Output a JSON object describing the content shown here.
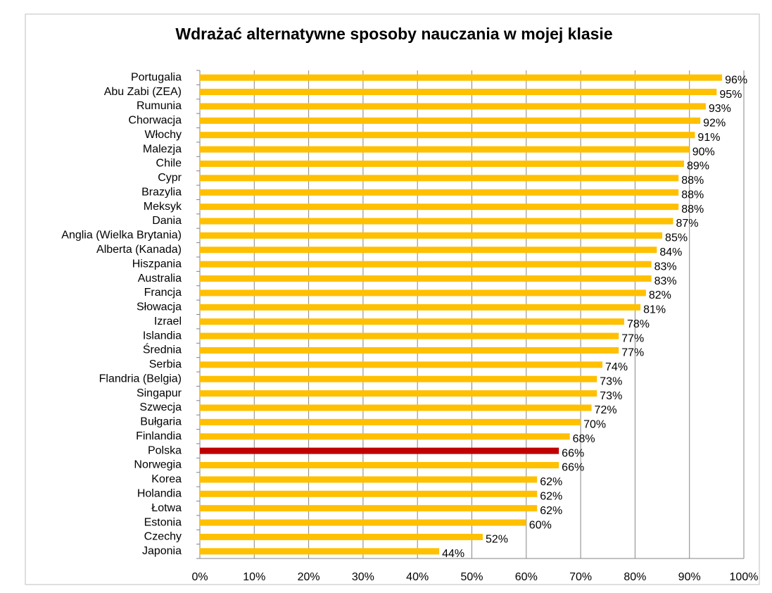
{
  "chart_data": {
    "type": "barh",
    "title": "Wdrażać alternatywne sposoby nauczania w mojej klasie",
    "categories": [
      "Portugalia",
      "Abu Zabi (ZEA)",
      "Rumunia",
      "Chorwacja",
      "Włochy",
      "Malezja",
      "Chile",
      "Cypr",
      "Brazylia",
      "Meksyk",
      "Dania",
      "Anglia (Wielka Brytania)",
      "Alberta (Kanada)",
      "Hiszpania",
      "Australia",
      "Francja",
      "Słowacja",
      "Izrael",
      "Islandia",
      "Średnia",
      "Serbia",
      "Flandria (Belgia)",
      "Singapur",
      "Szwecja",
      "Bułgaria",
      "Finlandia",
      "Polska",
      "Norwegia",
      "Korea",
      "Holandia",
      "Łotwa",
      "Estonia",
      "Czechy",
      "Japonia"
    ],
    "values": [
      96,
      95,
      93,
      92,
      91,
      90,
      89,
      88,
      88,
      88,
      87,
      85,
      84,
      83,
      83,
      82,
      81,
      78,
      77,
      77,
      74,
      73,
      73,
      72,
      70,
      68,
      66,
      66,
      62,
      62,
      62,
      60,
      52,
      44
    ],
    "value_labels": [
      "96%",
      "95%",
      "93%",
      "92%",
      "91%",
      "90%",
      "89%",
      "88%",
      "88%",
      "88%",
      "87%",
      "85%",
      "84%",
      "83%",
      "83%",
      "82%",
      "81%",
      "78%",
      "77%",
      "77%",
      "74%",
      "73%",
      "73%",
      "72%",
      "70%",
      "68%",
      "66%",
      "66%",
      "62%",
      "62%",
      "62%",
      "60%",
      "52%",
      "44%"
    ],
    "colors": [
      "#ffc000",
      "#ffc000",
      "#ffc000",
      "#ffc000",
      "#ffc000",
      "#ffc000",
      "#ffc000",
      "#ffc000",
      "#ffc000",
      "#ffc000",
      "#ffc000",
      "#ffc000",
      "#ffc000",
      "#ffc000",
      "#ffc000",
      "#ffc000",
      "#ffc000",
      "#ffc000",
      "#ffc000",
      "#ffc000",
      "#ffc000",
      "#ffc000",
      "#ffc000",
      "#ffc000",
      "#ffc000",
      "#ffc000",
      "#c00000",
      "#ffc000",
      "#ffc000",
      "#ffc000",
      "#ffc000",
      "#ffc000",
      "#ffc000",
      "#ffc000"
    ],
    "xlim": [
      0,
      100
    ],
    "xticks": [
      {
        "value": 0,
        "label": "0%"
      },
      {
        "value": 10,
        "label": "10%"
      },
      {
        "value": 20,
        "label": "20%"
      },
      {
        "value": 30,
        "label": "30%"
      },
      {
        "value": 40,
        "label": "40%"
      },
      {
        "value": 50,
        "label": "50%"
      },
      {
        "value": 60,
        "label": "60%"
      },
      {
        "value": 70,
        "label": "70%"
      },
      {
        "value": 80,
        "label": "80%"
      },
      {
        "value": 90,
        "label": "90%"
      },
      {
        "value": 100,
        "label": "100%"
      }
    ],
    "grid": true
  }
}
